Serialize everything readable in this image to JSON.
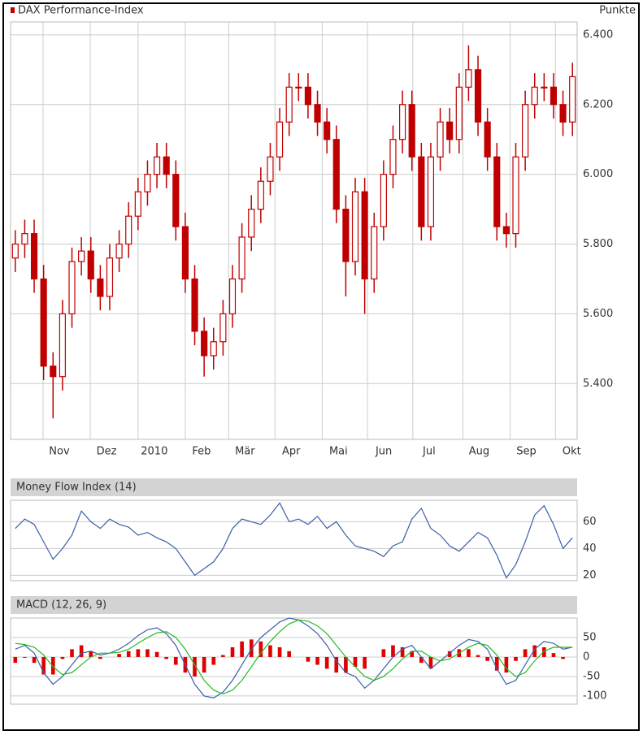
{
  "chart_data": [
    {
      "type": "candlestick",
      "title": "DAX Performance-Index",
      "y_label": "Punkte",
      "color": "#c00000",
      "open": [
        5760,
        5800,
        5830,
        5700,
        5450,
        5420,
        5600,
        5750,
        5780,
        5700,
        5650,
        5760,
        5800,
        5880,
        5950,
        6000,
        6050,
        6000,
        5850,
        5700,
        5550,
        5480,
        5520,
        5600,
        5700,
        5820,
        5900,
        5980,
        6050,
        6150,
        6250,
        6250,
        6200,
        6150,
        6100,
        5900,
        5750,
        5950,
        5700,
        5850,
        6000,
        6100,
        6200,
        6050,
        5850,
        6050,
        6150,
        6100,
        6250,
        6300,
        6150,
        6050,
        5850,
        5830,
        6050,
        6200,
        6250,
        6250,
        6200,
        6150
      ],
      "high": [
        5840,
        5870,
        5870,
        5740,
        5490,
        5640,
        5790,
        5820,
        5820,
        5740,
        5800,
        5840,
        5920,
        5990,
        6040,
        6090,
        6090,
        6040,
        5890,
        5740,
        5590,
        5560,
        5640,
        5740,
        5860,
        5940,
        6020,
        6090,
        6190,
        6290,
        6290,
        6290,
        6240,
        6190,
        6140,
        5940,
        5990,
        5990,
        5890,
        6040,
        6140,
        6240,
        6240,
        6090,
        6090,
        6190,
        6190,
        6290,
        6370,
        6340,
        6190,
        6090,
        5890,
        6090,
        6240,
        6290,
        6290,
        6290,
        6240,
        6320
      ],
      "low": [
        5720,
        5760,
        5660,
        5410,
        5300,
        5380,
        5560,
        5710,
        5660,
        5610,
        5610,
        5720,
        5760,
        5840,
        5910,
        5960,
        5960,
        5810,
        5660,
        5510,
        5420,
        5440,
        5480,
        5560,
        5660,
        5780,
        5860,
        5940,
        6010,
        6110,
        6210,
        6160,
        6110,
        6060,
        5860,
        5650,
        5710,
        5600,
        5660,
        5810,
        5960,
        6060,
        6010,
        5810,
        5810,
        6010,
        6060,
        6060,
        6210,
        6110,
        6010,
        5810,
        5790,
        5790,
        6010,
        6160,
        6210,
        6160,
        6110,
        6110
      ],
      "close": [
        5800,
        5830,
        5700,
        5450,
        5420,
        5600,
        5750,
        5780,
        5700,
        5650,
        5760,
        5800,
        5880,
        5950,
        6000,
        6050,
        6000,
        5850,
        5700,
        5550,
        5480,
        5520,
        5600,
        5700,
        5820,
        5900,
        5980,
        6050,
        6150,
        6250,
        6250,
        6200,
        6150,
        6100,
        5900,
        5750,
        5950,
        5700,
        5850,
        6000,
        6100,
        6200,
        6050,
        5850,
        6050,
        6150,
        6100,
        6250,
        6300,
        6150,
        6050,
        5850,
        5830,
        6050,
        6200,
        6250,
        6250,
        6200,
        6150,
        6280
      ],
      "ylim": [
        5240,
        6437
      ],
      "yticks": [
        {
          "value": 5400,
          "label": "5.400"
        },
        {
          "value": 5600,
          "label": "5.600"
        },
        {
          "value": 5800,
          "label": "5.800"
        },
        {
          "value": 6000,
          "label": "6.000"
        },
        {
          "value": 6200,
          "label": "6.200"
        },
        {
          "value": 6400,
          "label": "6.400"
        }
      ],
      "xlim": [
        0,
        60
      ],
      "xticks": [
        {
          "value": 3.44,
          "label": "Nov"
        },
        {
          "value": 8.44,
          "label": "Dez"
        },
        {
          "value": 13.5,
          "label": "2010"
        },
        {
          "value": 18.5,
          "label": "Feb"
        },
        {
          "value": 23.1,
          "label": "Mär"
        },
        {
          "value": 28.0,
          "label": "Apr"
        },
        {
          "value": 33.0,
          "label": "Mai"
        },
        {
          "value": 37.8,
          "label": "Jun"
        },
        {
          "value": 42.6,
          "label": "Jul"
        },
        {
          "value": 47.9,
          "label": "Aug"
        },
        {
          "value": 52.9,
          "label": "Sep"
        },
        {
          "value": 57.7,
          "label": "Okt"
        }
      ],
      "grid": true
    },
    {
      "type": "line",
      "title": "Money Flow Index (14)",
      "series": [
        {
          "color": "#3a5fa8",
          "values": [
            55,
            62,
            58,
            45,
            32,
            40,
            50,
            68,
            60,
            55,
            62,
            58,
            56,
            50,
            52,
            48,
            45,
            40,
            30,
            20,
            25,
            30,
            40,
            55,
            62,
            60,
            58,
            65,
            74,
            60,
            62,
            58,
            64,
            55,
            60,
            50,
            42,
            40,
            38,
            34,
            42,
            45,
            62,
            70,
            55,
            50,
            42,
            38,
            45,
            52,
            48,
            35,
            18,
            28,
            45,
            65,
            72,
            58,
            40,
            48
          ]
        }
      ],
      "ylim": [
        16,
        76
      ],
      "yticks": [
        20,
        40,
        60
      ],
      "grid": true
    },
    {
      "type": "line",
      "title": "MACD (12, 26, 9)",
      "series": [
        {
          "type": "bar",
          "color": "#e00000",
          "values": [
            -15,
            -2,
            -15,
            -45,
            -45,
            -5,
            20,
            30,
            15,
            -5,
            0,
            8,
            15,
            20,
            20,
            13,
            -5,
            -20,
            -40,
            -50,
            -40,
            -20,
            5,
            25,
            40,
            45,
            40,
            30,
            25,
            15,
            0,
            -12,
            -20,
            -30,
            -40,
            -40,
            -25,
            -30,
            0,
            20,
            30,
            25,
            15,
            -15,
            -30,
            0,
            15,
            20,
            20,
            5,
            -10,
            -35,
            -40,
            -10,
            20,
            30,
            25,
            10,
            -5,
            0
          ]
        },
        {
          "color": "#3a5fa8",
          "values": [
            20,
            30,
            10,
            -40,
            -70,
            -50,
            -20,
            10,
            15,
            5,
            10,
            20,
            35,
            55,
            70,
            75,
            60,
            30,
            -20,
            -70,
            -100,
            -105,
            -90,
            -60,
            -20,
            20,
            50,
            70,
            90,
            100,
            95,
            80,
            60,
            30,
            -10,
            -40,
            -50,
            -80,
            -60,
            -30,
            0,
            20,
            30,
            0,
            -30,
            -10,
            10,
            30,
            45,
            40,
            20,
            -30,
            -70,
            -60,
            -20,
            20,
            40,
            35,
            20,
            25
          ]
        },
        {
          "color": "#22bb22",
          "values": [
            35,
            32,
            25,
            5,
            -25,
            -45,
            -40,
            -20,
            0,
            10,
            10,
            12,
            20,
            35,
            50,
            62,
            65,
            50,
            20,
            -20,
            -60,
            -85,
            -95,
            -85,
            -60,
            -25,
            10,
            40,
            65,
            85,
            95,
            92,
            80,
            60,
            30,
            0,
            -25,
            -50,
            -60,
            -50,
            -30,
            -5,
            15,
            15,
            0,
            -10,
            -5,
            10,
            25,
            35,
            30,
            5,
            -30,
            -50,
            -40,
            -10,
            15,
            25,
            25,
            25
          ]
        }
      ],
      "ylim": [
        -121,
        100
      ],
      "yticks": [
        -100,
        -50,
        0,
        50
      ],
      "grid": true
    }
  ]
}
